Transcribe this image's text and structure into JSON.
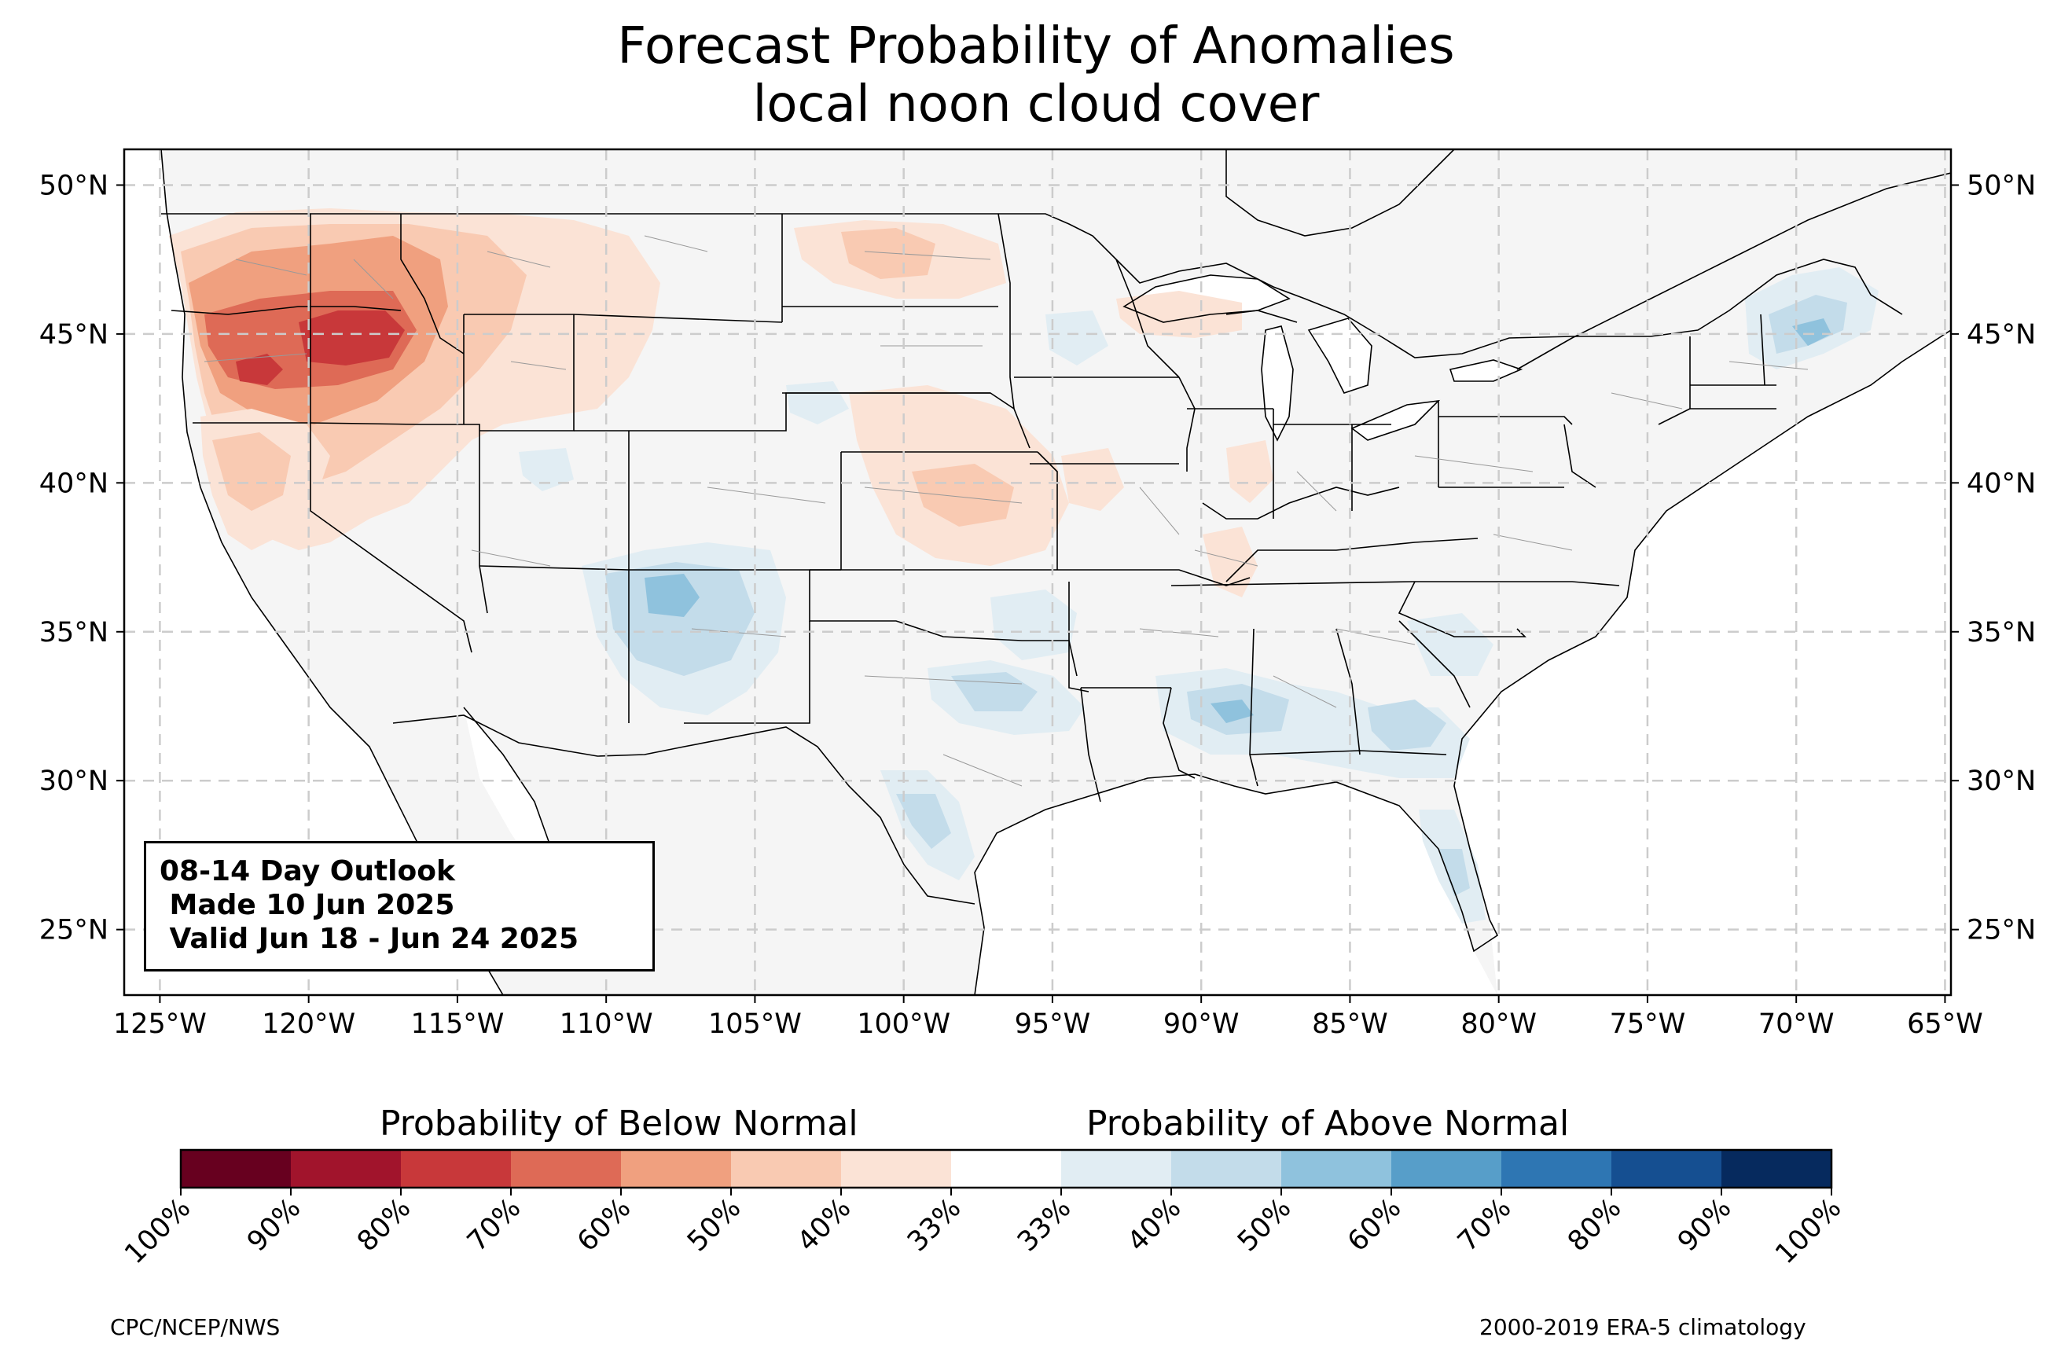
{
  "title": {
    "line1": "Forecast Probability of Anomalies",
    "line2": "local noon cloud cover"
  },
  "outlook_box": {
    "line1": "08-14 Day Outlook",
    "line2": " Made 10 Jun 2025",
    "line3": " Valid Jun 18 - Jun 24 2025"
  },
  "axes": {
    "lon_labels": [
      "125°W",
      "120°W",
      "115°W",
      "110°W",
      "105°W",
      "100°W",
      "95°W",
      "90°W",
      "85°W",
      "80°W",
      "75°W",
      "70°W",
      "65°W"
    ],
    "lat_labels": [
      "50°N",
      "45°N",
      "40°N",
      "35°N",
      "30°N",
      "25°N"
    ],
    "lon_range": [
      -126.2,
      -64.8
    ],
    "lat_range": [
      22.8,
      51.2
    ],
    "grid": "dashed"
  },
  "colorbar": {
    "below_label": "Probability of Below Normal",
    "above_label": "Probability of Above Normal",
    "tick_labels": [
      "100%",
      "90%",
      "80%",
      "70%",
      "60%",
      "50%",
      "40%",
      "33%",
      "33%",
      "40%",
      "50%",
      "60%",
      "70%",
      "80%",
      "90%",
      "100%"
    ],
    "colors": [
      "#67001f",
      "#a1142c",
      "#c8383a",
      "#de6a56",
      "#f0a07f",
      "#f9cab2",
      "#fbe3d6",
      "#ffffff",
      "#e1edf3",
      "#c3dcea",
      "#8fc2dd",
      "#579ec9",
      "#2e76b3",
      "#154f91",
      "#062a5e"
    ]
  },
  "footer": {
    "left": "CPC/NCEP/NWS",
    "right": "2000-2019 ERA-5 climatology"
  },
  "anomaly_colors": {
    "below_33_40": "#fbe3d6",
    "below_40_50": "#f9cab2",
    "below_50_60": "#f0a07f",
    "below_60_70": "#de6a56",
    "below_70_80": "#c8383a",
    "above_33_40": "#e1edf3",
    "above_40_50": "#c3dcea",
    "above_50_60": "#8fc2dd",
    "land": "#f5f5f5"
  }
}
